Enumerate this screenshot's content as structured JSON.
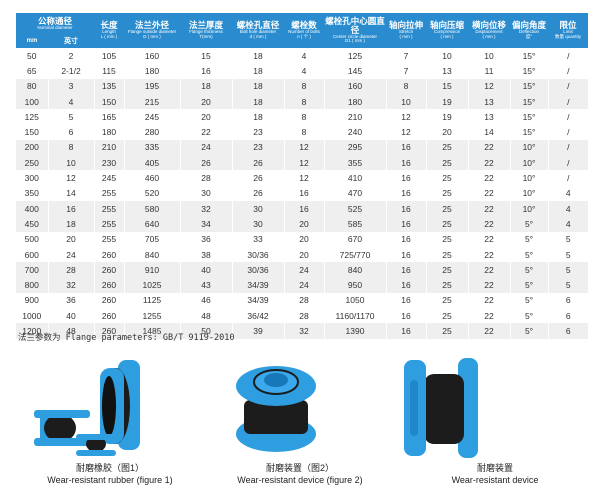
{
  "header": {
    "nominal": {
      "zh": "公称通径",
      "en": "Nominal diameter",
      "mm": "mm",
      "inch": "英寸"
    },
    "length": {
      "zh": "长度",
      "en": "Length",
      "unit": "L ( mm )"
    },
    "flange_od": {
      "zh": "法兰外径",
      "en": "Flange outside diameter",
      "unit": "D ( mm )"
    },
    "flange_t": {
      "zh": "法兰厚度",
      "en": "Flange thickness",
      "unit": "T(mm)"
    },
    "bolt_hole": {
      "zh": "螺栓孔直径",
      "en": "Bolt hole diameter",
      "unit": "d ( mm )"
    },
    "bolts": {
      "zh": "螺栓数",
      "en": "Number of bolts",
      "unit": "n ( 个 )"
    },
    "center": {
      "zh": "螺栓孔中心圆直径",
      "en": "Center circle diameter",
      "unit": "D1 ( mm )"
    },
    "stretch": {
      "zh": "轴向拉伸",
      "en": "Stretch",
      "unit": "( mm )"
    },
    "compression": {
      "zh": "轴向压缩",
      "en": "Compression",
      "unit": "( mm )"
    },
    "displacement": {
      "zh": "横向位移",
      "en": "Displacement",
      "unit": "( mm )"
    },
    "deflection": {
      "zh": "偏向角度",
      "en": "Deflection",
      "unit": "度°"
    },
    "limit": {
      "zh": "限位",
      "en": "Limit",
      "unit": "数量  quantity"
    }
  },
  "rows": [
    [
      "50",
      "2",
      "105",
      "160",
      "15",
      "18",
      "4",
      "125",
      "7",
      "10",
      "10",
      "15°",
      "/"
    ],
    [
      "65",
      "2-1/2",
      "115",
      "180",
      "16",
      "18",
      "4",
      "145",
      "7",
      "13",
      "11",
      "15°",
      "/"
    ],
    [
      "80",
      "3",
      "135",
      "195",
      "18",
      "18",
      "8",
      "160",
      "8",
      "15",
      "12",
      "15°",
      "/"
    ],
    [
      "100",
      "4",
      "150",
      "215",
      "20",
      "18",
      "8",
      "180",
      "10",
      "19",
      "13",
      "15°",
      "/"
    ],
    [
      "125",
      "5",
      "165",
      "245",
      "20",
      "18",
      "8",
      "210",
      "12",
      "19",
      "13",
      "15°",
      "/"
    ],
    [
      "150",
      "6",
      "180",
      "280",
      "22",
      "23",
      "8",
      "240",
      "12",
      "20",
      "14",
      "15°",
      "/"
    ],
    [
      "200",
      "8",
      "210",
      "335",
      "24",
      "23",
      "12",
      "295",
      "16",
      "25",
      "22",
      "10°",
      "/"
    ],
    [
      "250",
      "10",
      "230",
      "405",
      "26",
      "26",
      "12",
      "355",
      "16",
      "25",
      "22",
      "10°",
      "/"
    ],
    [
      "300",
      "12",
      "245",
      "460",
      "28",
      "26",
      "12",
      "410",
      "16",
      "25",
      "22",
      "10°",
      "/"
    ],
    [
      "350",
      "14",
      "255",
      "520",
      "30",
      "26",
      "16",
      "470",
      "16",
      "25",
      "22",
      "10°",
      "4"
    ],
    [
      "400",
      "16",
      "255",
      "580",
      "32",
      "30",
      "16",
      "525",
      "16",
      "25",
      "22",
      "10°",
      "4"
    ],
    [
      "450",
      "18",
      "255",
      "640",
      "34",
      "30",
      "20",
      "585",
      "16",
      "25",
      "22",
      "5°",
      "4"
    ],
    [
      "500",
      "20",
      "255",
      "705",
      "36",
      "33",
      "20",
      "670",
      "16",
      "25",
      "22",
      "5°",
      "5"
    ],
    [
      "600",
      "24",
      "260",
      "840",
      "38",
      "30/36",
      "20",
      "725/770",
      "16",
      "25",
      "22",
      "5°",
      "5"
    ],
    [
      "700",
      "28",
      "260",
      "910",
      "40",
      "30/36",
      "24",
      "840",
      "16",
      "25",
      "22",
      "5°",
      "5"
    ],
    [
      "800",
      "32",
      "260",
      "1025",
      "43",
      "34/39",
      "24",
      "950",
      "16",
      "25",
      "22",
      "5°",
      "5"
    ],
    [
      "900",
      "36",
      "260",
      "1125",
      "46",
      "34/39",
      "28",
      "1050",
      "16",
      "25",
      "22",
      "5°",
      "6"
    ],
    [
      "1000",
      "40",
      "260",
      "1255",
      "48",
      "36/42",
      "28",
      "1160/1170",
      "16",
      "25",
      "22",
      "5°",
      "6"
    ],
    [
      "1200",
      "48",
      "260",
      "1485",
      "50",
      "39",
      "32",
      "1390",
      "16",
      "25",
      "22",
      "5°",
      "6"
    ]
  ],
  "footnote": "法兰参数为 Flange parameters: GB/T 9119-2010",
  "products": [
    {
      "zh": "耐磨橡胶（图1）",
      "en": "Wear-resistant rubber (figure 1)"
    },
    {
      "zh": "耐磨装置（图2）",
      "en": "Wear-resistant device (figure 2)"
    },
    {
      "zh": "耐磨装置",
      "en": "Wear-resistant device"
    }
  ],
  "colors": {
    "header": "#2a8ccf",
    "flange": "#2e9ee0",
    "rubber": "#1c1c1c",
    "band": "#efefef"
  }
}
